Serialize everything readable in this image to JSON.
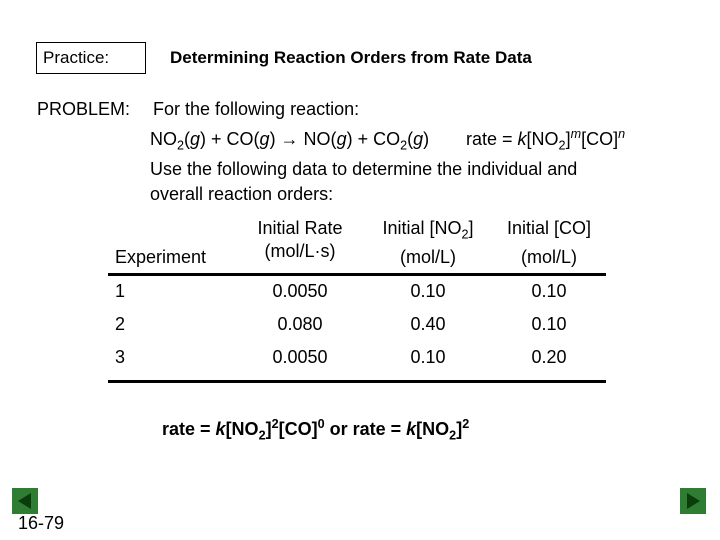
{
  "header": {
    "label": "Practice:",
    "title": "Determining Reaction Orders from Rate Data"
  },
  "problem": {
    "label": "PROBLEM:",
    "intro": "For the following reaction:",
    "reaction": [
      "NO",
      "2",
      "(",
      "g",
      ") + CO(",
      "g",
      ") → NO(",
      "g",
      ") + CO",
      "2",
      "(",
      "g",
      ")"
    ],
    "rate_law": [
      "rate = ",
      "k",
      "[NO",
      "2",
      "]",
      "m",
      "[CO]",
      "n"
    ],
    "instruction": [
      "Use the following data to determine the individual and",
      "overall reaction orders:"
    ]
  },
  "table": {
    "headers": [
      "Experiment",
      "Initial Rate",
      "(mol/L·s)",
      "Initial [NO",
      "2",
      "]",
      "(mol/L)",
      "Initial [CO]",
      "(mol/L)"
    ],
    "rows": [
      [
        "1",
        "0.0050",
        "0.10",
        "0.10"
      ],
      [
        "2",
        "0.080",
        "0.40",
        "0.10"
      ],
      [
        "3",
        "0.0050",
        "0.10",
        "0.20"
      ]
    ]
  },
  "answer": [
    "rate = ",
    "k",
    "[NO",
    "2",
    "]",
    "2",
    "[CO]",
    "0",
    " or rate = ",
    "k",
    "[NO",
    "2",
    "]",
    "2"
  ],
  "slide_number": "16-79"
}
